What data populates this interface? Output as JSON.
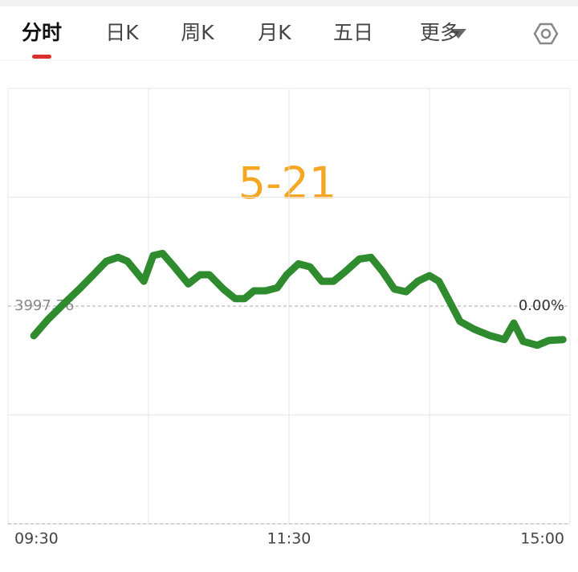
{
  "tabs": [
    "分时",
    "日K",
    "周K",
    "月K",
    "五日",
    "更多"
  ],
  "chart_data": {
    "type": "line",
    "title": "5-21",
    "x": [
      11,
      17,
      24,
      31,
      37,
      42,
      47,
      51,
      58,
      62,
      66,
      71,
      77,
      82,
      86,
      92,
      97,
      101,
      105,
      110,
      115,
      119,
      124,
      129,
      134,
      139,
      144,
      150,
      155,
      160,
      165,
      170,
      175,
      180,
      184,
      189,
      193,
      199,
      206,
      212,
      216,
      220,
      226,
      231,
      237
    ],
    "series": [
      {
        "color": "#2e8b2e",
        "values": [
          -0.068,
          -0.031,
          0.006,
          0.042,
          0.075,
          0.103,
          0.112,
          0.103,
          0.057,
          0.116,
          0.121,
          0.09,
          0.051,
          0.072,
          0.072,
          0.039,
          0.017,
          0.017,
          0.035,
          0.035,
          0.042,
          0.072,
          0.097,
          0.09,
          0.057,
          0.057,
          0.079,
          0.108,
          0.112,
          0.079,
          0.039,
          0.033,
          0.057,
          0.07,
          0.057,
          0.006,
          -0.035,
          -0.053,
          -0.068,
          -0.077,
          -0.039,
          -0.081,
          -0.09,
          -0.079,
          -0.077
        ]
      }
    ],
    "xlim": [
      0,
      240
    ],
    "xticks": [
      {
        "value": 0,
        "label": "09:30"
      },
      {
        "value": 120,
        "label": "11:30"
      },
      {
        "value": 240,
        "label": "15:00"
      }
    ],
    "xgrid": [
      60,
      120,
      180
    ],
    "ylim": [
      -0.5,
      0.5
    ],
    "yticks": [
      {
        "value": 0,
        "label": "0.00%"
      }
    ],
    "ygrid": [
      0.25,
      -0.25
    ],
    "base_price_label": "3997.76",
    "title_color": "#f5a623"
  }
}
